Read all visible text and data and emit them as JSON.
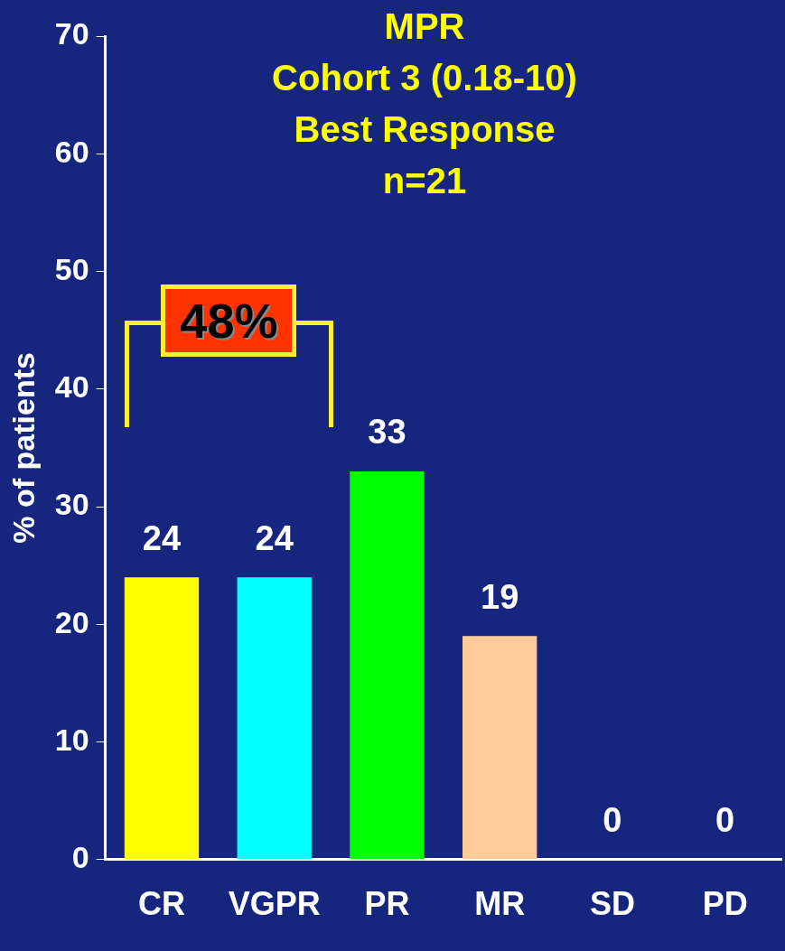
{
  "chart_data": {
    "type": "bar",
    "title": "MPR\nCohort 3 (0.18-10)\nBest Response\nn=21",
    "ylabel": "% of patients",
    "categories": [
      "CR",
      "VGPR",
      "PR",
      "MR",
      "SD",
      "PD"
    ],
    "values": [
      24,
      24,
      33,
      19,
      0,
      0
    ],
    "colors": [
      "#ffff00",
      "#00ffff",
      "#00ff00",
      "#ffcc99",
      "#ffcc99",
      "#ffcc99"
    ],
    "ylim": [
      0,
      70
    ],
    "yticks": [
      0,
      10,
      20,
      30,
      40,
      50,
      60,
      70
    ],
    "data_labels": true,
    "grid": false,
    "legend": false,
    "annotations": [
      "48%"
    ]
  }
}
